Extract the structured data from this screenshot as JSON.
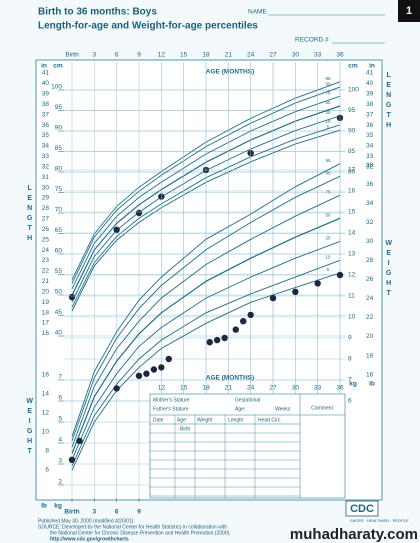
{
  "header": {
    "title": "Birth to 36 months: Boys",
    "subtitle": "Length-for-age and Weight-for-age percentiles",
    "name_label": "NAME",
    "record_label": "RECORD #",
    "page_number": "1"
  },
  "chart_data": [
    {
      "type": "line",
      "side_label": "LENGTH",
      "xlabel": "AGE (MONTHS)",
      "xlim": [
        0,
        36
      ],
      "xticks": [
        {
          "value": 0,
          "label": "Birth"
        },
        3,
        6,
        9,
        12,
        15,
        18,
        21,
        24,
        27,
        30,
        33,
        36
      ],
      "ylim": [
        38,
        106
      ],
      "y_unit": "cm",
      "yticks": [
        40,
        45,
        50,
        55,
        60,
        65,
        70,
        75,
        80,
        85,
        90,
        95,
        100
      ],
      "alt_unit": "in",
      "alt_ticks": [
        16,
        17,
        18,
        19,
        20,
        21,
        22,
        23,
        24,
        25,
        26,
        27,
        28,
        29,
        30,
        31,
        32,
        33,
        34,
        35,
        36,
        37,
        38,
        39,
        40,
        41
      ],
      "y2ticks": [
        80,
        85,
        90,
        95,
        100
      ],
      "alt2_ticks": [
        32,
        33,
        34,
        35,
        36,
        37,
        38,
        39,
        40,
        41
      ],
      "grid": true,
      "x": [
        0,
        3,
        6,
        9,
        12,
        18,
        24,
        30,
        36
      ],
      "series": [
        {
          "name": "95",
          "color": "#1f6e8c",
          "values": [
            53.7,
            64.9,
            71.6,
            76.3,
            80.1,
            87.3,
            93.1,
            98.0,
            102.0
          ]
        },
        {
          "name": "90",
          "color": "#1f6e8c",
          "values": [
            52.8,
            64.1,
            70.7,
            75.3,
            79.2,
            86.2,
            91.9,
            96.8,
            100.7
          ]
        },
        {
          "name": "75",
          "color": "#1f6e8c",
          "values": [
            51.5,
            62.6,
            69.2,
            73.8,
            77.5,
            84.4,
            90.0,
            94.7,
            98.5
          ]
        },
        {
          "name": "50",
          "color": "#1f6e8c",
          "values": [
            49.9,
            61.0,
            67.5,
            72.0,
            75.7,
            82.4,
            87.8,
            92.4,
            96.1
          ]
        },
        {
          "name": "25",
          "color": "#1f6e8c",
          "values": [
            48.3,
            59.4,
            65.8,
            70.2,
            73.9,
            80.4,
            85.6,
            90.1,
            93.7
          ]
        },
        {
          "name": "10",
          "color": "#1f6e8c",
          "values": [
            47.0,
            57.9,
            64.3,
            68.7,
            72.2,
            78.6,
            83.7,
            88.0,
            91.5
          ]
        },
        {
          "name": "5",
          "color": "#1f6e8c",
          "values": [
            46.1,
            57.1,
            63.4,
            67.7,
            71.3,
            77.5,
            82.5,
            86.8,
            90.2
          ]
        }
      ],
      "points": {
        "color": "#1b2940",
        "x": [
          0,
          6,
          9,
          12,
          18,
          24,
          36
        ],
        "values": [
          49.5,
          65.9,
          70,
          74,
          80.5,
          84.6,
          93.2
        ]
      }
    },
    {
      "type": "line",
      "side_label": "WEIGHT",
      "xlabel": "AGE (MONTHS)",
      "xlim": [
        0,
        36
      ],
      "xticks": [
        12,
        15,
        18,
        21,
        24,
        27,
        30,
        33,
        36
      ],
      "xticks_bottom": [
        {
          "value": 0,
          "label": "Birth"
        },
        3,
        6,
        9
      ],
      "ylim": [
        1.5,
        18.5
      ],
      "y_unit": "kg",
      "yticks": [
        2,
        3,
        4,
        5,
        6,
        7
      ],
      "alt_unit": "lb",
      "alt_ticks": [
        6,
        8,
        10,
        12,
        14,
        16
      ],
      "y2ticks": [
        6,
        7,
        8,
        9,
        10,
        11,
        12,
        13,
        14,
        15,
        16,
        17
      ],
      "alt2_ticks": [
        16,
        18,
        20,
        22,
        24,
        26,
        28,
        30,
        32,
        34,
        36,
        38
      ],
      "grid": true,
      "x": [
        0,
        3,
        6,
        9,
        12,
        18,
        24,
        30,
        36
      ],
      "series": [
        {
          "name": "95",
          "color": "#1f6e8c",
          "values": [
            4.3,
            7.4,
            9.3,
            10.8,
            11.9,
            13.7,
            14.9,
            16.2,
            17.3
          ]
        },
        {
          "name": "90",
          "color": "#1f6e8c",
          "values": [
            4.1,
            7.1,
            9.0,
            10.4,
            11.5,
            13.2,
            14.5,
            15.7,
            16.7
          ]
        },
        {
          "name": "75",
          "color": "#1f6e8c",
          "values": [
            3.8,
            6.7,
            8.5,
            9.8,
            10.9,
            12.5,
            13.7,
            14.8,
            15.8
          ]
        },
        {
          "name": "50",
          "color": "#1f6e8c",
          "values": [
            3.5,
            6.2,
            7.9,
            9.2,
            10.2,
            11.7,
            12.8,
            13.8,
            14.7
          ]
        },
        {
          "name": "25",
          "color": "#1f6e8c",
          "values": [
            3.2,
            5.7,
            7.3,
            8.6,
            9.5,
            10.9,
            11.9,
            12.8,
            13.6
          ]
        },
        {
          "name": "10",
          "color": "#1f6e8c",
          "values": [
            2.9,
            5.3,
            6.8,
            8.0,
            8.9,
            10.2,
            11.1,
            11.9,
            12.7
          ]
        },
        {
          "name": "5",
          "color": "#1f6e8c",
          "values": [
            2.7,
            5.0,
            6.5,
            7.6,
            8.5,
            9.7,
            10.7,
            11.4,
            12.1
          ]
        }
      ],
      "points": {
        "color": "#1b2940",
        "x": [
          0,
          1,
          6,
          9,
          10,
          11,
          12,
          13,
          18.5,
          19.5,
          20.5,
          22,
          23,
          24,
          27,
          30,
          33,
          36
        ],
        "values": [
          3.2,
          4.1,
          6.6,
          7.2,
          7.3,
          7.5,
          7.6,
          8.0,
          8.8,
          8.9,
          9.0,
          9.4,
          9.8,
          10.1,
          10.9,
          11.2,
          11.6,
          12.0
        ]
      }
    }
  ],
  "record_table": {
    "mother": "Mother's Stature",
    "gestational": "Gestational",
    "father": "Father's Stature",
    "age": "Age:",
    "weeks": "Weeks",
    "comment": "Comment",
    "columns": [
      "Date",
      "Age",
      "Weight",
      "Length",
      "Head Circ."
    ],
    "birth": "Birth"
  },
  "footer": {
    "published": "Published May 30, 2000 (modified 4/20/01).",
    "source_1": "SOURCE: Developed by the National Center for Health Statistics in collaboration with",
    "source_2": "the National Center for Chronic Disease Prevention and Health Promotion (2000).",
    "url": "http://www.cdc.gov/growthcharts",
    "logo": "CDC",
    "tagline": "SAFER · HEALTHIER · PEOPLE"
  },
  "watermark": "muhadharaty.com"
}
